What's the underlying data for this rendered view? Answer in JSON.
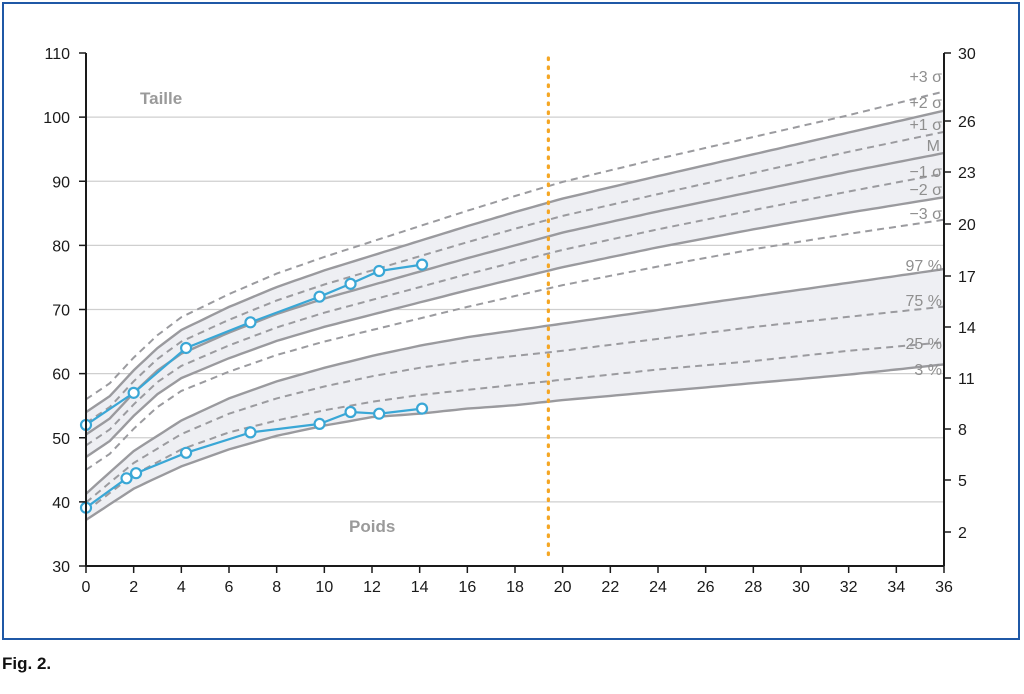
{
  "caption": "Fig. 2.",
  "chart_data": {
    "type": "line",
    "x": {
      "ticks": [
        0,
        2,
        4,
        6,
        8,
        10,
        12,
        14,
        16,
        18,
        20,
        22,
        24,
        26,
        28,
        30,
        32,
        34,
        36
      ],
      "range": [
        0,
        36
      ]
    },
    "y_left": {
      "ticks": [
        30,
        40,
        50,
        60,
        70,
        80,
        90,
        100,
        110
      ],
      "range": [
        30,
        110
      ]
    },
    "y_right": {
      "ticks": [
        2,
        5,
        8,
        11,
        14,
        17,
        20,
        23,
        26,
        30
      ]
    },
    "labels": {
      "height": "Taille",
      "weight": "Poids"
    },
    "vertical_marker": {
      "x": 19.4,
      "color": "#f5a623",
      "style": "dotted"
    },
    "height_band": {
      "upper": "+2 σ",
      "lower": "−2 σ",
      "fill": "#eeeff3"
    },
    "weight_band": {
      "upper": "97 %",
      "lower": "3 %",
      "fill": "#eeeff3"
    },
    "height_curves": [
      {
        "name": "+3 σ",
        "style": "dashed",
        "x": [
          0,
          1,
          2,
          3,
          4,
          6,
          8,
          10,
          12,
          14,
          16,
          18,
          20,
          24,
          28,
          32,
          36
        ],
        "y": [
          56,
          58.5,
          62.5,
          66,
          68.8,
          72.4,
          75.6,
          78.2,
          80.6,
          83,
          85.4,
          87.7,
          89.9,
          93.5,
          96.9,
          100.3,
          104
        ]
      },
      {
        "name": "+2 σ",
        "style": "solid",
        "x": [
          0,
          1,
          2,
          3,
          4,
          6,
          8,
          10,
          12,
          14,
          16,
          18,
          20,
          24,
          28,
          32,
          36
        ],
        "y": [
          54,
          56.5,
          60.5,
          64,
          66.8,
          70.4,
          73.5,
          76.1,
          78.4,
          80.7,
          83,
          85.2,
          87.3,
          90.8,
          94.2,
          97.6,
          101
        ]
      },
      {
        "name": "+1 σ",
        "style": "dashed",
        "x": [
          0,
          1,
          2,
          3,
          4,
          6,
          8,
          10,
          12,
          14,
          16,
          18,
          20,
          24,
          28,
          32,
          36
        ],
        "y": [
          52.3,
          54.8,
          58.8,
          62.3,
          65,
          68.4,
          71.4,
          73.9,
          76.1,
          78.3,
          80.5,
          82.6,
          84.6,
          88,
          91.3,
          94.6,
          97.7
        ]
      },
      {
        "name": "M",
        "style": "solid",
        "x": [
          0,
          1,
          2,
          3,
          4,
          6,
          8,
          10,
          12,
          14,
          16,
          18,
          20,
          24,
          28,
          32,
          36
        ],
        "y": [
          50.5,
          53,
          57,
          60.5,
          63.1,
          66.4,
          69.3,
          71.7,
          73.8,
          75.9,
          78,
          80,
          82,
          85.3,
          88.4,
          91.5,
          94.4
        ]
      },
      {
        "name": "−1 σ",
        "style": "dashed",
        "x": [
          0,
          1,
          2,
          3,
          4,
          6,
          8,
          10,
          12,
          14,
          16,
          18,
          20,
          24,
          28,
          32,
          36
        ],
        "y": [
          48.8,
          51.3,
          55.2,
          58.7,
          61.2,
          64.4,
          67.2,
          69.5,
          71.5,
          73.5,
          75.5,
          77.4,
          79.3,
          82.5,
          85.5,
          88.4,
          91.2
        ]
      },
      {
        "name": "−2 σ",
        "style": "solid",
        "x": [
          0,
          1,
          2,
          3,
          4,
          6,
          8,
          10,
          12,
          14,
          16,
          18,
          20,
          24,
          28,
          32,
          36
        ],
        "y": [
          47,
          49.5,
          53.4,
          56.8,
          59.3,
          62.4,
          65.1,
          67.3,
          69.2,
          71.1,
          73,
          74.8,
          76.6,
          79.7,
          82.5,
          85.1,
          87.5
        ]
      },
      {
        "name": "−3 σ",
        "style": "dashed",
        "x": [
          0,
          1,
          2,
          3,
          4,
          6,
          8,
          10,
          12,
          14,
          16,
          18,
          20,
          24,
          28,
          32,
          36
        ],
        "y": [
          45,
          47.5,
          51.4,
          54.8,
          57.3,
          60.3,
          62.9,
          65,
          66.8,
          68.6,
          70.4,
          72.1,
          73.8,
          76.7,
          79.4,
          81.8,
          84
        ]
      }
    ],
    "weight_curves": [
      {
        "name": "97 %",
        "style": "solid",
        "x": [
          0,
          2,
          4,
          6,
          8,
          10,
          12,
          14,
          16,
          18,
          20,
          24,
          28,
          32,
          36
        ],
        "y": [
          4.2,
          6.7,
          8.5,
          9.8,
          10.8,
          11.6,
          12.3,
          12.9,
          13.4,
          13.8,
          14.2,
          15,
          15.8,
          16.6,
          17.4
        ]
      },
      {
        "name": "75 %",
        "style": "dashed",
        "x": [
          0,
          2,
          4,
          6,
          8,
          10,
          12,
          14,
          16,
          18,
          20,
          24,
          28,
          32,
          36
        ],
        "y": [
          3.7,
          6,
          7.7,
          8.9,
          9.8,
          10.5,
          11.1,
          11.6,
          12,
          12.3,
          12.6,
          13.3,
          14,
          14.6,
          15.2
        ]
      },
      {
        "name": "25 %",
        "style": "dashed",
        "x": [
          0,
          2,
          4,
          6,
          8,
          10,
          12,
          14,
          16,
          18,
          20,
          24,
          28,
          32,
          36
        ],
        "y": [
          3.2,
          5.3,
          6.8,
          7.8,
          8.5,
          9.1,
          9.6,
          10,
          10.3,
          10.6,
          10.9,
          11.5,
          12,
          12.6,
          13.1
        ]
      },
      {
        "name": "3 %",
        "style": "solid",
        "x": [
          0,
          2,
          4,
          6,
          8,
          10,
          12,
          14,
          16,
          18,
          20,
          24,
          28,
          32,
          36
        ],
        "y": [
          2.7,
          4.5,
          5.8,
          6.8,
          7.6,
          8.2,
          8.7,
          8.9,
          9.2,
          9.4,
          9.7,
          10.2,
          10.7,
          11.2,
          11.8
        ]
      }
    ],
    "patient_height": {
      "x": [
        0,
        2,
        4.2,
        6.9,
        9.8,
        11.1,
        12.3,
        14.1
      ],
      "y": [
        52,
        57,
        64,
        68,
        72,
        74,
        76,
        77
      ],
      "color": "#3aa7d6"
    },
    "patient_weight": {
      "x": [
        0,
        1.7,
        2.1,
        4.2,
        6.9,
        9.8,
        11.1,
        12.3,
        14.1
      ],
      "y": [
        3.4,
        5.1,
        5.4,
        6.6,
        7.8,
        8.3,
        9,
        8.9,
        9.2
      ],
      "color": "#3aa7d6"
    }
  }
}
